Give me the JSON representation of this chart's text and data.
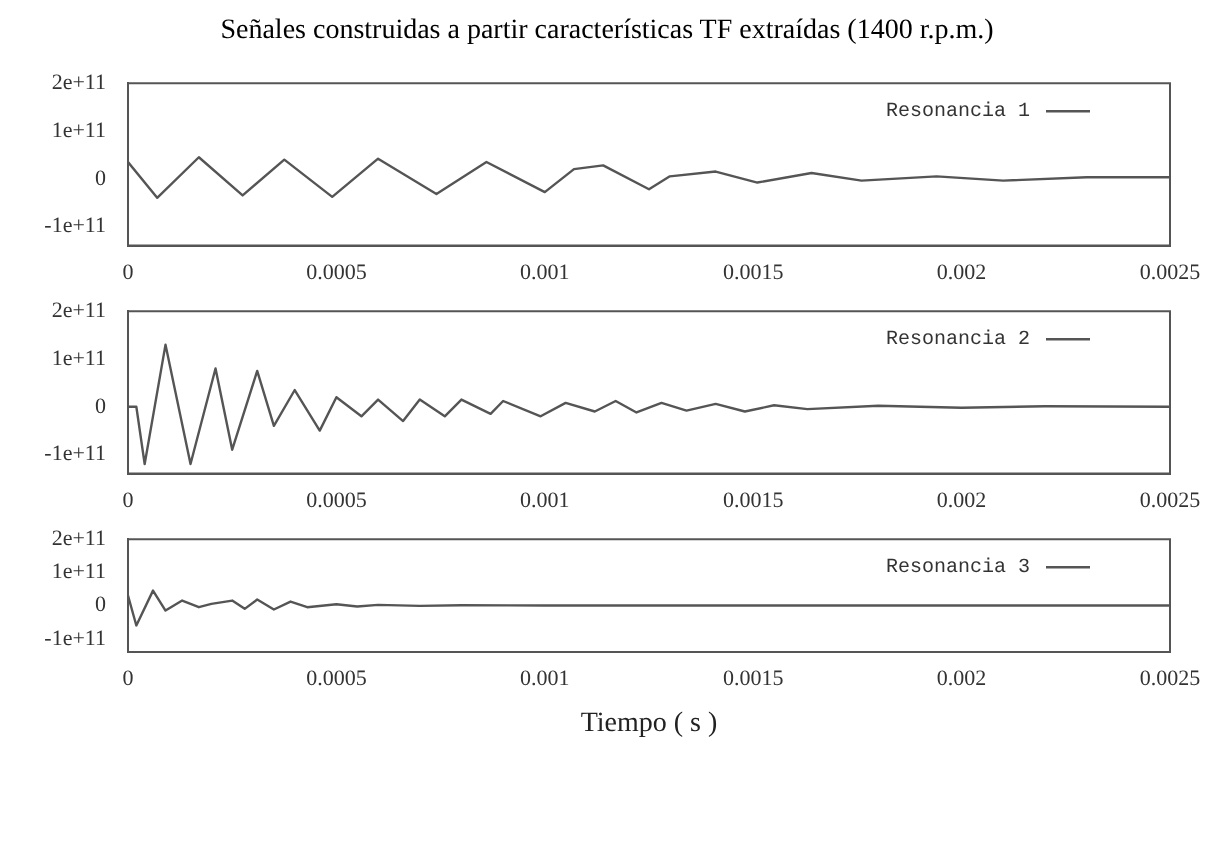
{
  "chart_data": [
    {
      "type": "line",
      "title": "Señales construidas a partir características TF extraídas (1400 r.p.m.)",
      "legend": "top right",
      "grid": false,
      "marker": "none",
      "line_style": "solid",
      "xlim": [
        0,
        0.0025
      ],
      "xticks": [
        0,
        0.0005,
        0.001,
        0.0015,
        0.002,
        0.0025
      ],
      "ylim": [
        -140000000000,
        200000000000
      ],
      "yticks": [
        {
          "value": -100000000000,
          "label": "-1e+11"
        },
        {
          "value": 0,
          "label": "0"
        },
        {
          "value": 100000000000,
          "label": "1e+11"
        },
        {
          "value": 200000000000,
          "label": "2e+11"
        }
      ],
      "series": [
        {
          "name": "Resonancia 1",
          "color": "#555555",
          "x": [
            0,
            7e-05,
            0.00017,
            0.000275,
            0.000375,
            0.00049,
            0.0006,
            0.00074,
            0.00086,
            0.001,
            0.00107,
            0.00114,
            0.00125,
            0.0013,
            0.00141,
            0.00151,
            0.00164,
            0.00176,
            0.00194,
            0.0021,
            0.0023,
            0.0025
          ],
          "values": [
            35000000000,
            -40000000000,
            45000000000,
            -35000000000,
            40000000000,
            -38000000000,
            42000000000,
            -32000000000,
            35000000000,
            -28000000000,
            20000000000,
            28000000000,
            -22000000000,
            5000000000,
            15000000000,
            -8000000000,
            12000000000,
            -4000000000,
            5000000000,
            -4000000000,
            3000000000,
            3000000000
          ]
        }
      ]
    },
    {
      "type": "line",
      "legend": "top right",
      "grid": false,
      "marker": "none",
      "line_style": "solid",
      "xlim": [
        0,
        0.0025
      ],
      "xticks": [
        0,
        0.0005,
        0.001,
        0.0015,
        0.002,
        0.0025
      ],
      "ylim": [
        -140000000000,
        200000000000
      ],
      "yticks": [
        {
          "value": -100000000000,
          "label": "-1e+11"
        },
        {
          "value": 0,
          "label": "0"
        },
        {
          "value": 100000000000,
          "label": "1e+11"
        },
        {
          "value": 200000000000,
          "label": "2e+11"
        }
      ],
      "series": [
        {
          "name": "Resonancia 2",
          "color": "#555555",
          "x": [
            0,
            2e-05,
            4e-05,
            9e-05,
            0.00015,
            0.00021,
            0.00025,
            0.00031,
            0.00035,
            0.0004,
            0.00046,
            0.0005,
            0.00056,
            0.0006,
            0.00066,
            0.0007,
            0.00076,
            0.0008,
            0.00087,
            0.0009,
            0.00099,
            0.00105,
            0.00112,
            0.00117,
            0.00122,
            0.00128,
            0.00134,
            0.00141,
            0.00148,
            0.00155,
            0.00163,
            0.0018,
            0.002,
            0.0022,
            0.0025
          ],
          "values": [
            0,
            0,
            -120000000000,
            130000000000,
            -120000000000,
            80000000000,
            -90000000000,
            75000000000,
            -40000000000,
            35000000000,
            -50000000000,
            20000000000,
            -20000000000,
            15000000000,
            -30000000000,
            15000000000,
            -20000000000,
            15000000000,
            -15000000000,
            12000000000,
            -20000000000,
            8000000000,
            -10000000000,
            12000000000,
            -12000000000,
            8000000000,
            -8000000000,
            6000000000,
            -10000000000,
            3000000000,
            -5000000000,
            2000000000,
            -2000000000,
            1000000000,
            0
          ]
        }
      ]
    },
    {
      "type": "line",
      "xlabel": "Tiempo ( s )",
      "legend": "top right",
      "grid": false,
      "marker": "none",
      "line_style": "solid",
      "xlim": [
        0,
        0.0025
      ],
      "xticks": [
        0,
        0.0005,
        0.001,
        0.0015,
        0.002,
        0.0025
      ],
      "ylim": [
        -140000000000,
        200000000000
      ],
      "yticks": [
        {
          "value": -100000000000,
          "label": "-1e+11"
        },
        {
          "value": 0,
          "label": "0"
        },
        {
          "value": 100000000000,
          "label": "1e+11"
        },
        {
          "value": 200000000000,
          "label": "2e+11"
        }
      ],
      "series": [
        {
          "name": "Resonancia 3",
          "color": "#555555",
          "x": [
            0,
            2e-05,
            6e-05,
            9e-05,
            0.00013,
            0.00017,
            0.0002,
            0.00025,
            0.00028,
            0.00031,
            0.00035,
            0.00039,
            0.00043,
            0.0005,
            0.00055,
            0.0006,
            0.0007,
            0.0008,
            0.001,
            0.0015,
            0.002,
            0.0025
          ],
          "values": [
            30000000000,
            -60000000000,
            45000000000,
            -15000000000,
            15000000000,
            -5000000000,
            5000000000,
            15000000000,
            -10000000000,
            18000000000,
            -12000000000,
            12000000000,
            -5000000000,
            4000000000,
            -3000000000,
            2000000000,
            -1000000000,
            1000000000,
            0,
            0,
            0,
            0
          ]
        }
      ]
    }
  ]
}
